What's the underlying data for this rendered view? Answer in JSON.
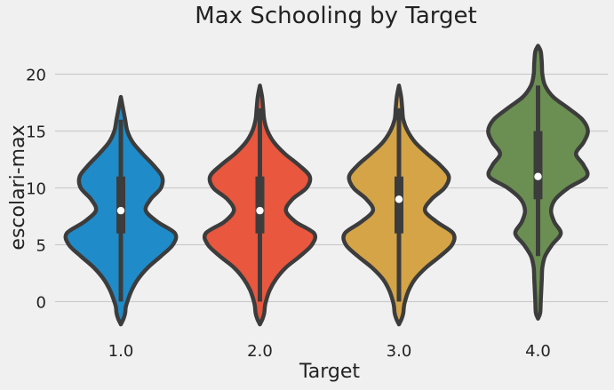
{
  "chart_data": {
    "type": "violin",
    "title": "Max Schooling by Target",
    "xlabel": "Target",
    "ylabel": "escolari-max",
    "ylim": [
      -2.8,
      23.5
    ],
    "yticks": [
      0,
      5,
      10,
      15,
      20
    ],
    "categories": [
      "1.0",
      "2.0",
      "3.0",
      "4.0"
    ],
    "colors": [
      "#1f8bc9",
      "#e8573e",
      "#d4a447",
      "#6b8f52"
    ],
    "grid": true,
    "violins": [
      {
        "category": "1.0",
        "color": "#1f8bc9",
        "range": [
          -2,
          18
        ],
        "quartiles": [
          6,
          8,
          11
        ],
        "whiskers": [
          0,
          16
        ],
        "median": 8,
        "density_width": [
          [
            -2,
            0.0
          ],
          [
            -1.5,
            0.05
          ],
          [
            -1,
            0.08
          ],
          [
            -0.5,
            0.09
          ],
          [
            0,
            0.12
          ],
          [
            1,
            0.2
          ],
          [
            2,
            0.32
          ],
          [
            3,
            0.5
          ],
          [
            4,
            0.74
          ],
          [
            5,
            0.96
          ],
          [
            6,
            1.0
          ],
          [
            7,
            0.68
          ],
          [
            8,
            0.46
          ],
          [
            9,
            0.55
          ],
          [
            10,
            0.74
          ],
          [
            11,
            0.76
          ],
          [
            12,
            0.6
          ],
          [
            13,
            0.4
          ],
          [
            14,
            0.22
          ],
          [
            15,
            0.12
          ],
          [
            16,
            0.08
          ],
          [
            17,
            0.04
          ],
          [
            18,
            0.0
          ]
        ]
      },
      {
        "category": "2.0",
        "color": "#e8573e",
        "range": [
          -2,
          19
        ],
        "quartiles": [
          6,
          8,
          11
        ],
        "whiskers": [
          0,
          17
        ],
        "median": 8,
        "density_width": [
          [
            -2,
            0.0
          ],
          [
            -1.5,
            0.05
          ],
          [
            -1,
            0.08
          ],
          [
            -0.5,
            0.09
          ],
          [
            0,
            0.11
          ],
          [
            1,
            0.18
          ],
          [
            2,
            0.3
          ],
          [
            3,
            0.48
          ],
          [
            4,
            0.74
          ],
          [
            5,
            0.96
          ],
          [
            6,
            1.0
          ],
          [
            7,
            0.66
          ],
          [
            8,
            0.48
          ],
          [
            9,
            0.6
          ],
          [
            10,
            0.86
          ],
          [
            11,
            0.92
          ],
          [
            12,
            0.72
          ],
          [
            13,
            0.46
          ],
          [
            14,
            0.26
          ],
          [
            15,
            0.14
          ],
          [
            16,
            0.08
          ],
          [
            17,
            0.06
          ],
          [
            18,
            0.04
          ],
          [
            19,
            0.0
          ]
        ]
      },
      {
        "category": "3.0",
        "color": "#d4a447",
        "range": [
          -2,
          19
        ],
        "quartiles": [
          6,
          9,
          11
        ],
        "whiskers": [
          0,
          17
        ],
        "median": 9,
        "density_width": [
          [
            -2,
            0.0
          ],
          [
            -1.5,
            0.05
          ],
          [
            -1,
            0.08
          ],
          [
            -0.5,
            0.09
          ],
          [
            0,
            0.11
          ],
          [
            1,
            0.18
          ],
          [
            2,
            0.3
          ],
          [
            3,
            0.5
          ],
          [
            4,
            0.76
          ],
          [
            5,
            0.98
          ],
          [
            6,
            1.0
          ],
          [
            7,
            0.7
          ],
          [
            8,
            0.48
          ],
          [
            9,
            0.6
          ],
          [
            10,
            0.84
          ],
          [
            11,
            0.92
          ],
          [
            12,
            0.76
          ],
          [
            13,
            0.52
          ],
          [
            14,
            0.3
          ],
          [
            15,
            0.16
          ],
          [
            16,
            0.08
          ],
          [
            17,
            0.06
          ],
          [
            18,
            0.04
          ],
          [
            19,
            0.0
          ]
        ]
      },
      {
        "category": "4.0",
        "color": "#6b8f52",
        "range": [
          -1.5,
          22.5
        ],
        "quartiles": [
          9,
          11,
          15
        ],
        "whiskers": [
          4,
          19
        ],
        "median": 11,
        "density_width": [
          [
            -1.5,
            0.0
          ],
          [
            -1,
            0.04
          ],
          [
            0,
            0.05
          ],
          [
            1,
            0.06
          ],
          [
            2,
            0.07
          ],
          [
            3,
            0.08
          ],
          [
            4,
            0.13
          ],
          [
            5,
            0.26
          ],
          [
            6,
            0.42
          ],
          [
            7,
            0.3
          ],
          [
            8,
            0.24
          ],
          [
            9,
            0.32
          ],
          [
            10,
            0.56
          ],
          [
            11,
            0.9
          ],
          [
            12,
            0.84
          ],
          [
            13,
            0.7
          ],
          [
            14,
            0.84
          ],
          [
            15,
            0.92
          ],
          [
            16,
            0.82
          ],
          [
            17,
            0.56
          ],
          [
            18,
            0.28
          ],
          [
            19,
            0.13
          ],
          [
            20,
            0.08
          ],
          [
            21,
            0.07
          ],
          [
            22,
            0.05
          ],
          [
            22.5,
            0.0
          ]
        ]
      }
    ]
  }
}
